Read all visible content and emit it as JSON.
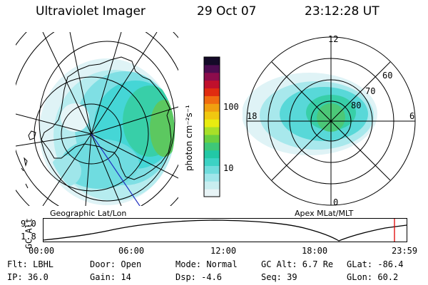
{
  "header": {
    "title": "Ultraviolet Imager",
    "date": "29 Oct 07",
    "time": "23:12:28 UT"
  },
  "left_panel": {
    "label": "Geographic Lat/Lon"
  },
  "right_panel": {
    "label": "Apex MLat/MLT",
    "mlt_labels": {
      "top": "12",
      "left": "18",
      "right": "6",
      "bottom": "0"
    },
    "lat_labels": [
      "60",
      "70",
      "80"
    ]
  },
  "colorbar": {
    "unit_label": "photon cm⁻²s⁻¹",
    "ticks": [
      {
        "label": "100",
        "value": 100
      },
      {
        "label": "10",
        "value": 10
      }
    ],
    "colors": [
      "#e8f4f6",
      "#c8eef0",
      "#9fe6ea",
      "#6fdcdc",
      "#3cd2c4",
      "#22c8a6",
      "#3ec878",
      "#6ad040",
      "#a8e028",
      "#e8ec10",
      "#f0c810",
      "#f0a010",
      "#f06c10",
      "#e02c10",
      "#c0102c",
      "#8c0c4c",
      "#4c0c50",
      "#140a28"
    ]
  },
  "timeline": {
    "axis_label": "GC Alt",
    "y_ticks": [
      "9.0",
      "1.8"
    ],
    "x_ticks": [
      "00:00",
      "06:00",
      "12:00",
      "18:00",
      "23:59"
    ],
    "marker_color": "#e00000"
  },
  "info": {
    "flt": "Flt: LBHL",
    "ip": "IP: 36.0",
    "door": "Door: Open",
    "gain": "Gain: 14",
    "mode": "Mode: Normal",
    "dsp": "Dsp:   -4.6",
    "gcalt": "GC Alt: 6.7 Re",
    "seq": "Seq: 39",
    "glat": "GLat:  -86.4",
    "glon": "GLon:  60.2"
  }
}
